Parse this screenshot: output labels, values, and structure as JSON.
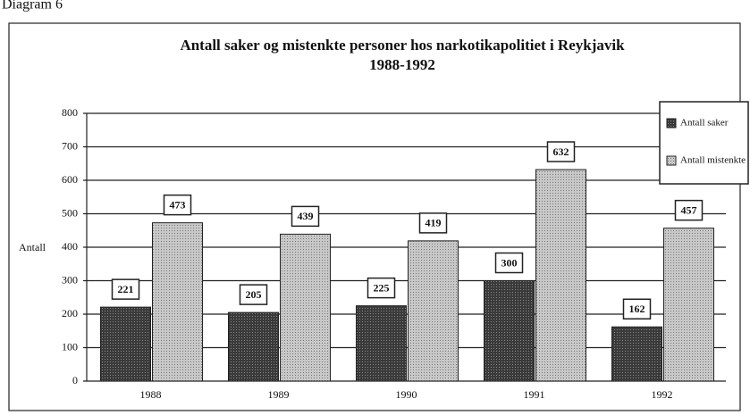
{
  "chart_data": {
    "type": "bar",
    "caption": "Diagram 6",
    "title": "Antall saker og mistenkte personer hos narkotikapolitiet i Reykjavik",
    "subtitle": "1988-1992",
    "y_label": "Antall",
    "categories": [
      "1988",
      "1989",
      "1990",
      "1991",
      "1992"
    ],
    "series": [
      {
        "name": "Antall saker",
        "color": "#4a4a4a",
        "values": [
          221,
          205,
          225,
          300,
          162
        ]
      },
      {
        "name": "Antall mistenkte",
        "color": "#bdbdbd",
        "values": [
          473,
          439,
          419,
          632,
          457
        ]
      }
    ],
    "ylim": [
      0,
      800
    ],
    "yticks": [
      0,
      100,
      200,
      300,
      400,
      500,
      600,
      700,
      800
    ],
    "grid": true,
    "legend": "top-right"
  }
}
